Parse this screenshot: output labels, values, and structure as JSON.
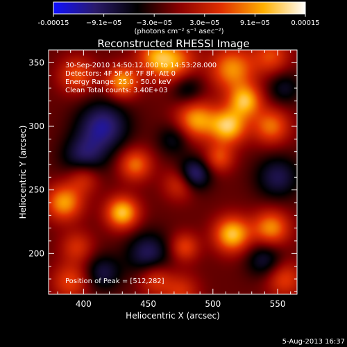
{
  "colorbar": {
    "tick_labels": [
      "-0.00015",
      "−9.1e−05",
      "−3.0e−05",
      "3.0e−05",
      "9.1e−05",
      "0.00015"
    ],
    "range": [
      -0.00015,
      0.00015
    ],
    "unit_label": "(photons cm⁻² s⁻¹ asec⁻²)",
    "colors": [
      "#1010ff",
      "#2a1a6a",
      "#000000",
      "#8a0000",
      "#e03000",
      "#ffb000",
      "#ffffff"
    ]
  },
  "chart_data": {
    "type": "heatmap",
    "title": "Reconstructed RHESSI Image",
    "xlabel": "Heliocentric X (arcsec)",
    "ylabel": "Heliocentric Y (arcsec)",
    "xlim": [
      373,
      565
    ],
    "ylim": [
      168,
      360
    ],
    "x_ticks": [
      400,
      450,
      500,
      550
    ],
    "y_ticks": [
      200,
      250,
      300,
      350
    ],
    "info_lines": [
      "30-Sep-2010 14:50:12.000 to 14:53:28.000",
      "Detectors: 4F 5F 6F 7F 8F, Att 0",
      "Energy Range: 25.0 - 50.0 keV",
      "Clean    Total counts: 3.40E+03"
    ],
    "peak_label": "Position of Peak = [512,282]",
    "peak": [
      512,
      282
    ],
    "sources": [
      {
        "x": 512,
        "y": 300,
        "a": 1.0,
        "s": 10
      },
      {
        "x": 525,
        "y": 320,
        "a": 0.9,
        "s": 9
      },
      {
        "x": 487,
        "y": 305,
        "a": 0.85,
        "s": 11
      },
      {
        "x": 515,
        "y": 345,
        "a": 0.8,
        "s": 12
      },
      {
        "x": 470,
        "y": 350,
        "a": 0.75,
        "s": 12
      },
      {
        "x": 545,
        "y": 300,
        "a": 0.7,
        "s": 10
      },
      {
        "x": 430,
        "y": 335,
        "a": 0.85,
        "s": 9
      },
      {
        "x": 455,
        "y": 355,
        "a": 0.6,
        "s": 10
      },
      {
        "x": 395,
        "y": 340,
        "a": 0.6,
        "s": 10
      },
      {
        "x": 385,
        "y": 240,
        "a": 0.85,
        "s": 10
      },
      {
        "x": 400,
        "y": 260,
        "a": 0.55,
        "s": 9
      },
      {
        "x": 440,
        "y": 270,
        "a": 0.7,
        "s": 9
      },
      {
        "x": 430,
        "y": 232,
        "a": 1.0,
        "s": 9
      },
      {
        "x": 475,
        "y": 255,
        "a": 0.55,
        "s": 9
      },
      {
        "x": 515,
        "y": 215,
        "a": 1.0,
        "s": 10
      },
      {
        "x": 545,
        "y": 220,
        "a": 0.8,
        "s": 10
      },
      {
        "x": 478,
        "y": 205,
        "a": 0.55,
        "s": 8
      },
      {
        "x": 555,
        "y": 180,
        "a": 0.55,
        "s": 10
      },
      {
        "x": 475,
        "y": 170,
        "a": 0.45,
        "s": 10
      },
      {
        "x": 390,
        "y": 178,
        "a": 0.55,
        "s": 10
      },
      {
        "x": 395,
        "y": 205,
        "a": 0.45,
        "s": 9
      },
      {
        "x": 455,
        "y": 180,
        "a": 0.5,
        "s": 9
      },
      {
        "x": 545,
        "y": 355,
        "a": 0.55,
        "s": 10
      },
      {
        "x": 505,
        "y": 275,
        "a": 0.55,
        "s": 8
      },
      {
        "x": 415,
        "y": 300,
        "a": -0.75,
        "s": 14
      },
      {
        "x": 400,
        "y": 275,
        "a": -0.6,
        "s": 12
      },
      {
        "x": 485,
        "y": 262,
        "a": -0.8,
        "s": 9
      },
      {
        "x": 550,
        "y": 260,
        "a": -0.55,
        "s": 12
      },
      {
        "x": 450,
        "y": 200,
        "a": -0.6,
        "s": 12
      },
      {
        "x": 415,
        "y": 185,
        "a": -0.5,
        "s": 10
      },
      {
        "x": 540,
        "y": 195,
        "a": -0.5,
        "s": 10
      },
      {
        "x": 470,
        "y": 290,
        "a": -0.4,
        "s": 9
      },
      {
        "x": 480,
        "y": 330,
        "a": -0.45,
        "s": 9
      },
      {
        "x": 555,
        "y": 330,
        "a": -0.4,
        "s": 9
      }
    ]
  },
  "footer": {
    "date_stamp": "5-Aug-2013 16:37"
  }
}
